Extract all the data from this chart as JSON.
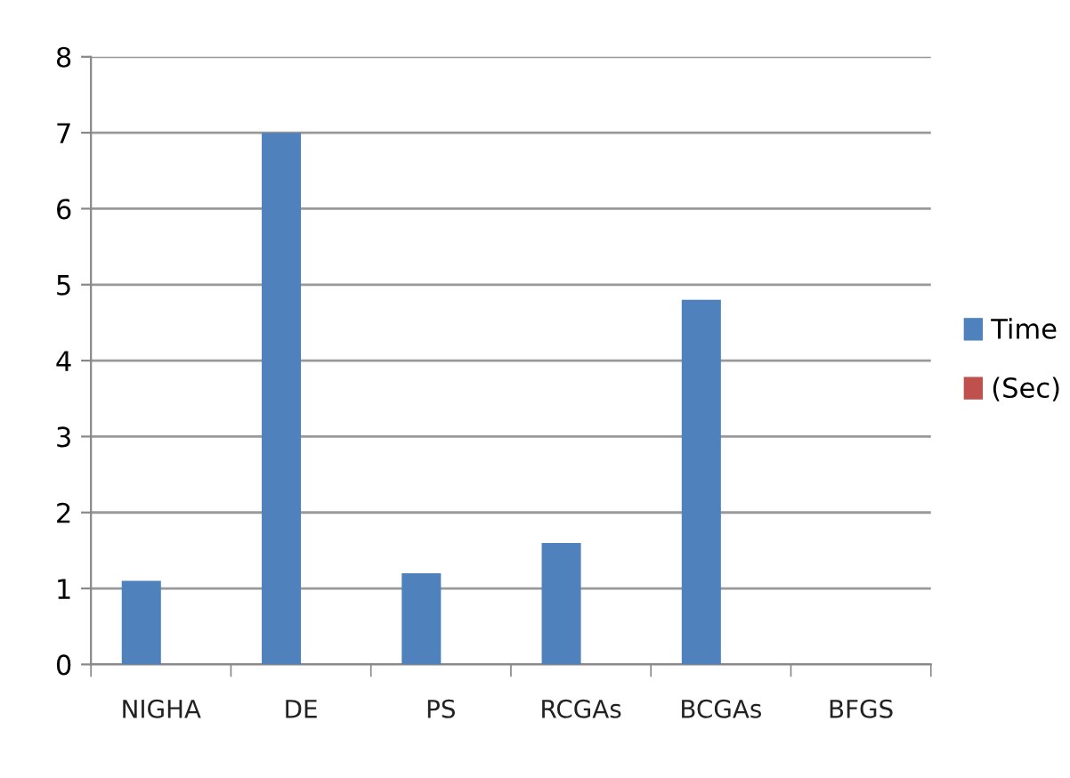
{
  "chart_data": {
    "type": "bar",
    "categories": [
      "NIGHA",
      "DE",
      "PS",
      "RCGAs",
      "BCGAs",
      "BFGS"
    ],
    "series": [
      {
        "name": "Time",
        "color": "#4f81bd",
        "values": [
          1.1,
          7.0,
          1.2,
          1.6,
          4.8,
          null
        ]
      },
      {
        "name": "(Sec)",
        "color": "#c0504d",
        "values": [
          null,
          null,
          null,
          null,
          null,
          null
        ]
      }
    ],
    "ylim": [
      0,
      8
    ],
    "yticks": [
      0,
      1,
      2,
      3,
      4,
      5,
      6,
      7,
      8
    ],
    "grid": "y",
    "legend": "right"
  }
}
